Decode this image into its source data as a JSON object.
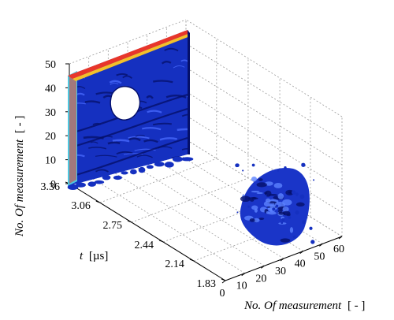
{
  "chart_data": {
    "type": "scatter",
    "title": "",
    "axes": {
      "z": {
        "label_prefix": "No. Of measurement",
        "label_unit": "[ - ]",
        "ticks": [
          "0",
          "10",
          "20",
          "30",
          "40",
          "50"
        ],
        "range": [
          0,
          50
        ]
      },
      "t": {
        "label_prefix": "t",
        "label_unit": "[µs]",
        "ticks": [
          "3.36",
          "3.06",
          "2.75",
          "2.44",
          "2.14",
          "1.83"
        ],
        "range": [
          1.83,
          3.36
        ]
      },
      "x": {
        "label_prefix": "No. Of measurement",
        "label_unit": "[ - ]",
        "ticks": [
          "0",
          "10",
          "20",
          "30",
          "40",
          "50",
          "60"
        ],
        "range": [
          0,
          60
        ]
      }
    },
    "grid": true,
    "surfaces": [
      {
        "kind": "planar-scan-with-hole",
        "t": 3.36,
        "x_range": [
          0,
          10
        ],
        "z_range": [
          0,
          50
        ],
        "hole_center": [
          5,
          37
        ],
        "color": "#1530c0"
      },
      {
        "kind": "blob-cluster",
        "t": 1.95,
        "x_center": 38,
        "z_center": 14,
        "color": "#1a35c8"
      }
    ],
    "colors": {
      "primary": "#1530c0",
      "dark": "#05106a",
      "highlight": "#e8362a",
      "cyan": "#4fc8e0"
    }
  }
}
